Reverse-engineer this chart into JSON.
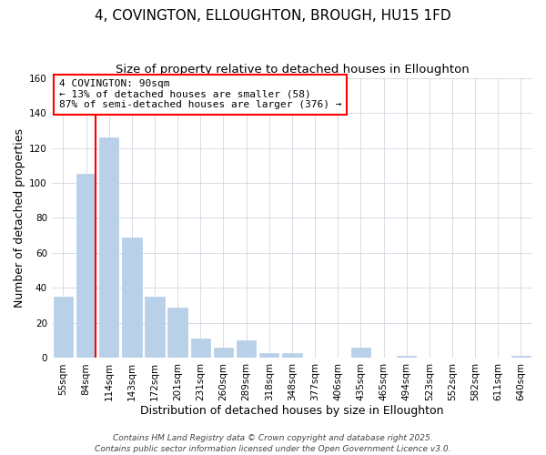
{
  "title": "4, COVINGTON, ELLOUGHTON, BROUGH, HU15 1FD",
  "subtitle": "Size of property relative to detached houses in Elloughton",
  "xlabel": "Distribution of detached houses by size in Elloughton",
  "ylabel": "Number of detached properties",
  "bar_labels": [
    "55sqm",
    "84sqm",
    "114sqm",
    "143sqm",
    "172sqm",
    "201sqm",
    "231sqm",
    "260sqm",
    "289sqm",
    "318sqm",
    "348sqm",
    "377sqm",
    "406sqm",
    "435sqm",
    "465sqm",
    "494sqm",
    "523sqm",
    "552sqm",
    "582sqm",
    "611sqm",
    "640sqm"
  ],
  "bar_values": [
    35,
    105,
    126,
    69,
    35,
    29,
    11,
    6,
    10,
    3,
    3,
    0,
    0,
    6,
    0,
    1,
    0,
    0,
    0,
    0,
    1
  ],
  "bar_color": "#b8d0e8",
  "red_line_index": 1,
  "ylim": [
    0,
    160
  ],
  "yticks": [
    0,
    20,
    40,
    60,
    80,
    100,
    120,
    140,
    160
  ],
  "annotation_title": "4 COVINGTON: 90sqm",
  "annotation_line1": "← 13% of detached houses are smaller (58)",
  "annotation_line2": "87% of semi-detached houses are larger (376) →",
  "footer1": "Contains HM Land Registry data © Crown copyright and database right 2025.",
  "footer2": "Contains public sector information licensed under the Open Government Licence v3.0.",
  "title_fontsize": 11,
  "subtitle_fontsize": 9.5,
  "axis_label_fontsize": 9,
  "tick_fontsize": 7.5,
  "annotation_fontsize": 8,
  "footer_fontsize": 6.5,
  "background_color": "#ffffff",
  "grid_color": "#d0d8e0"
}
